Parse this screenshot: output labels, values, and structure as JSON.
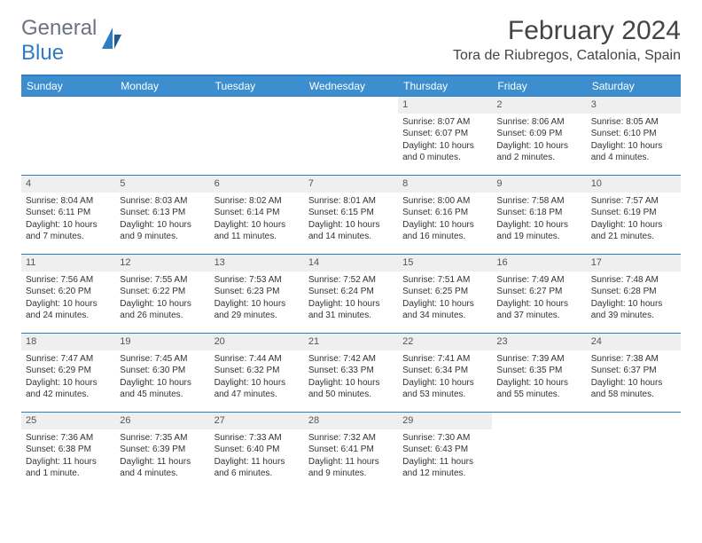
{
  "logo": {
    "line1": "General",
    "line2": "Blue"
  },
  "title": "February 2024",
  "location": "Tora de Riubregos, Catalonia, Spain",
  "colors": {
    "header_bg": "#3d8ecf",
    "border": "#2f7cc4",
    "daynum_bg": "#efefef",
    "text": "#333333",
    "logo_gray": "#6b7280",
    "logo_blue": "#2f7cc4"
  },
  "weekdays": [
    "Sunday",
    "Monday",
    "Tuesday",
    "Wednesday",
    "Thursday",
    "Friday",
    "Saturday"
  ],
  "weeks": [
    [
      {
        "day": "",
        "sunrise": "",
        "sunset": "",
        "daylight": ""
      },
      {
        "day": "",
        "sunrise": "",
        "sunset": "",
        "daylight": ""
      },
      {
        "day": "",
        "sunrise": "",
        "sunset": "",
        "daylight": ""
      },
      {
        "day": "",
        "sunrise": "",
        "sunset": "",
        "daylight": ""
      },
      {
        "day": "1",
        "sunrise": "Sunrise: 8:07 AM",
        "sunset": "Sunset: 6:07 PM",
        "daylight": "Daylight: 10 hours and 0 minutes."
      },
      {
        "day": "2",
        "sunrise": "Sunrise: 8:06 AM",
        "sunset": "Sunset: 6:09 PM",
        "daylight": "Daylight: 10 hours and 2 minutes."
      },
      {
        "day": "3",
        "sunrise": "Sunrise: 8:05 AM",
        "sunset": "Sunset: 6:10 PM",
        "daylight": "Daylight: 10 hours and 4 minutes."
      }
    ],
    [
      {
        "day": "4",
        "sunrise": "Sunrise: 8:04 AM",
        "sunset": "Sunset: 6:11 PM",
        "daylight": "Daylight: 10 hours and 7 minutes."
      },
      {
        "day": "5",
        "sunrise": "Sunrise: 8:03 AM",
        "sunset": "Sunset: 6:13 PM",
        "daylight": "Daylight: 10 hours and 9 minutes."
      },
      {
        "day": "6",
        "sunrise": "Sunrise: 8:02 AM",
        "sunset": "Sunset: 6:14 PM",
        "daylight": "Daylight: 10 hours and 11 minutes."
      },
      {
        "day": "7",
        "sunrise": "Sunrise: 8:01 AM",
        "sunset": "Sunset: 6:15 PM",
        "daylight": "Daylight: 10 hours and 14 minutes."
      },
      {
        "day": "8",
        "sunrise": "Sunrise: 8:00 AM",
        "sunset": "Sunset: 6:16 PM",
        "daylight": "Daylight: 10 hours and 16 minutes."
      },
      {
        "day": "9",
        "sunrise": "Sunrise: 7:58 AM",
        "sunset": "Sunset: 6:18 PM",
        "daylight": "Daylight: 10 hours and 19 minutes."
      },
      {
        "day": "10",
        "sunrise": "Sunrise: 7:57 AM",
        "sunset": "Sunset: 6:19 PM",
        "daylight": "Daylight: 10 hours and 21 minutes."
      }
    ],
    [
      {
        "day": "11",
        "sunrise": "Sunrise: 7:56 AM",
        "sunset": "Sunset: 6:20 PM",
        "daylight": "Daylight: 10 hours and 24 minutes."
      },
      {
        "day": "12",
        "sunrise": "Sunrise: 7:55 AM",
        "sunset": "Sunset: 6:22 PM",
        "daylight": "Daylight: 10 hours and 26 minutes."
      },
      {
        "day": "13",
        "sunrise": "Sunrise: 7:53 AM",
        "sunset": "Sunset: 6:23 PM",
        "daylight": "Daylight: 10 hours and 29 minutes."
      },
      {
        "day": "14",
        "sunrise": "Sunrise: 7:52 AM",
        "sunset": "Sunset: 6:24 PM",
        "daylight": "Daylight: 10 hours and 31 minutes."
      },
      {
        "day": "15",
        "sunrise": "Sunrise: 7:51 AM",
        "sunset": "Sunset: 6:25 PM",
        "daylight": "Daylight: 10 hours and 34 minutes."
      },
      {
        "day": "16",
        "sunrise": "Sunrise: 7:49 AM",
        "sunset": "Sunset: 6:27 PM",
        "daylight": "Daylight: 10 hours and 37 minutes."
      },
      {
        "day": "17",
        "sunrise": "Sunrise: 7:48 AM",
        "sunset": "Sunset: 6:28 PM",
        "daylight": "Daylight: 10 hours and 39 minutes."
      }
    ],
    [
      {
        "day": "18",
        "sunrise": "Sunrise: 7:47 AM",
        "sunset": "Sunset: 6:29 PM",
        "daylight": "Daylight: 10 hours and 42 minutes."
      },
      {
        "day": "19",
        "sunrise": "Sunrise: 7:45 AM",
        "sunset": "Sunset: 6:30 PM",
        "daylight": "Daylight: 10 hours and 45 minutes."
      },
      {
        "day": "20",
        "sunrise": "Sunrise: 7:44 AM",
        "sunset": "Sunset: 6:32 PM",
        "daylight": "Daylight: 10 hours and 47 minutes."
      },
      {
        "day": "21",
        "sunrise": "Sunrise: 7:42 AM",
        "sunset": "Sunset: 6:33 PM",
        "daylight": "Daylight: 10 hours and 50 minutes."
      },
      {
        "day": "22",
        "sunrise": "Sunrise: 7:41 AM",
        "sunset": "Sunset: 6:34 PM",
        "daylight": "Daylight: 10 hours and 53 minutes."
      },
      {
        "day": "23",
        "sunrise": "Sunrise: 7:39 AM",
        "sunset": "Sunset: 6:35 PM",
        "daylight": "Daylight: 10 hours and 55 minutes."
      },
      {
        "day": "24",
        "sunrise": "Sunrise: 7:38 AM",
        "sunset": "Sunset: 6:37 PM",
        "daylight": "Daylight: 10 hours and 58 minutes."
      }
    ],
    [
      {
        "day": "25",
        "sunrise": "Sunrise: 7:36 AM",
        "sunset": "Sunset: 6:38 PM",
        "daylight": "Daylight: 11 hours and 1 minute."
      },
      {
        "day": "26",
        "sunrise": "Sunrise: 7:35 AM",
        "sunset": "Sunset: 6:39 PM",
        "daylight": "Daylight: 11 hours and 4 minutes."
      },
      {
        "day": "27",
        "sunrise": "Sunrise: 7:33 AM",
        "sunset": "Sunset: 6:40 PM",
        "daylight": "Daylight: 11 hours and 6 minutes."
      },
      {
        "day": "28",
        "sunrise": "Sunrise: 7:32 AM",
        "sunset": "Sunset: 6:41 PM",
        "daylight": "Daylight: 11 hours and 9 minutes."
      },
      {
        "day": "29",
        "sunrise": "Sunrise: 7:30 AM",
        "sunset": "Sunset: 6:43 PM",
        "daylight": "Daylight: 11 hours and 12 minutes."
      },
      {
        "day": "",
        "sunrise": "",
        "sunset": "",
        "daylight": ""
      },
      {
        "day": "",
        "sunrise": "",
        "sunset": "",
        "daylight": ""
      }
    ]
  ]
}
